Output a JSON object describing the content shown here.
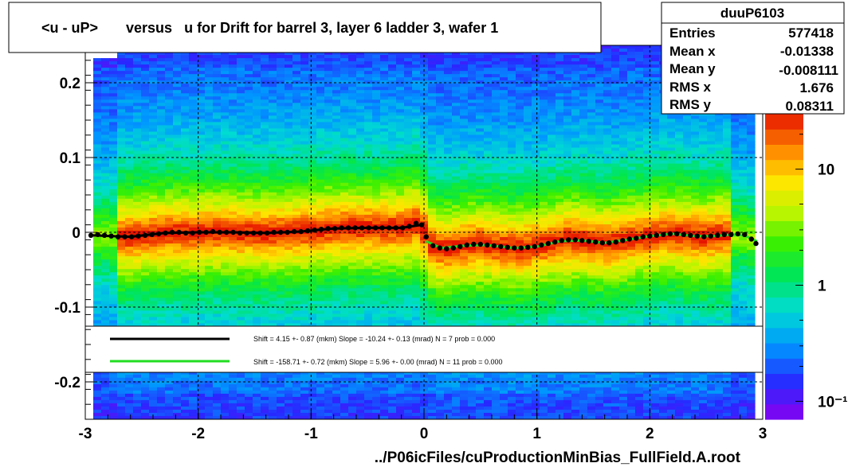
{
  "title": "<u - uP>       versus   u for Drift for barrel 3, layer 6 ladder 3, wafer 1",
  "stats": {
    "name": "duuP6103",
    "rows": [
      {
        "label": "Entries",
        "value": "577418"
      },
      {
        "label": "Mean x",
        "value": "-0.01338"
      },
      {
        "label": "Mean y",
        "value": "-0.008111"
      },
      {
        "label": "RMS x",
        "value": "1.676"
      },
      {
        "label": "RMS y",
        "value": "0.08311"
      }
    ]
  },
  "fit_legend": [
    {
      "text": "Shift =    4.15 +- 0.87 (mkm) Slope =   -10.24 +- 0.13 (mrad)  N = 7 prob = 0.000",
      "color": "#000000"
    },
    {
      "text": "Shift =  -158.71 +- 0.72 (mkm) Slope =    5.96 +- 0.00 (mrad)  N = 11 prob = 0.000",
      "color": "#22dd22"
    }
  ],
  "footer": "../P06icFiles/cuProductionMinBias_FullField.A.root",
  "colorbar": {
    "ticks": [
      {
        "value": 10,
        "label": "10"
      },
      {
        "value": 1,
        "label": "1"
      },
      {
        "value": 0.1,
        "label": "10⁻¹"
      }
    ]
  },
  "chart_data": {
    "type": "heatmap",
    "xlim": [
      -3,
      3
    ],
    "ylim": [
      -0.25,
      0.25
    ],
    "x_ticks": [
      -3,
      -2,
      -1,
      0,
      1,
      2,
      3
    ],
    "y_ticks": [
      0.2,
      0.1,
      0,
      -0.1,
      -0.2
    ],
    "x_tick_labels": [
      "-3",
      "-2",
      "-1",
      "0",
      "1",
      "2",
      "3"
    ],
    "y_tick_labels": [
      "0.2",
      "0.1",
      "0",
      "-0.1",
      "-0.2"
    ],
    "grid": true,
    "colorbar_scale": "log",
    "profile_points": [
      [
        -2.95,
        -0.004
      ],
      [
        -2.89,
        -0.003
      ],
      [
        -2.83,
        -0.004
      ],
      [
        -2.77,
        -0.005
      ],
      [
        -2.71,
        -0.006
      ],
      [
        -2.65,
        -0.006
      ],
      [
        -2.59,
        -0.006
      ],
      [
        -2.53,
        -0.005
      ],
      [
        -2.47,
        -0.004
      ],
      [
        -2.41,
        -0.003
      ],
      [
        -2.35,
        -0.002
      ],
      [
        -2.29,
        -0.001
      ],
      [
        -2.23,
        -0.0
      ],
      [
        -2.17,
        0.0
      ],
      [
        -2.11,
        -0.001
      ],
      [
        -2.05,
        -0.001
      ],
      [
        -1.99,
        -0.0
      ],
      [
        -1.93,
        0.0
      ],
      [
        -1.87,
        0.001
      ],
      [
        -1.81,
        0.0
      ],
      [
        -1.75,
        0.0
      ],
      [
        -1.69,
        -0.0
      ],
      [
        -1.63,
        -0.001
      ],
      [
        -1.57,
        -0.001
      ],
      [
        -1.51,
        -0.001
      ],
      [
        -1.45,
        -0.001
      ],
      [
        -1.39,
        -0.001
      ],
      [
        -1.33,
        -0.0
      ],
      [
        -1.27,
        0.0
      ],
      [
        -1.21,
        0.0
      ],
      [
        -1.15,
        0.001
      ],
      [
        -1.09,
        0.001
      ],
      [
        -1.03,
        0.002
      ],
      [
        -0.97,
        0.003
      ],
      [
        -0.91,
        0.004
      ],
      [
        -0.85,
        0.005
      ],
      [
        -0.79,
        0.005
      ],
      [
        -0.73,
        0.006
      ],
      [
        -0.67,
        0.006
      ],
      [
        -0.61,
        0.006
      ],
      [
        -0.55,
        0.006
      ],
      [
        -0.49,
        0.006
      ],
      [
        -0.43,
        0.006
      ],
      [
        -0.37,
        0.006
      ],
      [
        -0.31,
        0.006
      ],
      [
        -0.25,
        0.006
      ],
      [
        -0.19,
        0.006
      ],
      [
        -0.13,
        0.008
      ],
      [
        -0.07,
        0.012
      ],
      [
        -0.02,
        0.01
      ],
      [
        0.02,
        -0.006
      ],
      [
        0.08,
        -0.018
      ],
      [
        0.14,
        -0.021
      ],
      [
        0.2,
        -0.022
      ],
      [
        0.26,
        -0.021
      ],
      [
        0.32,
        -0.019
      ],
      [
        0.38,
        -0.017
      ],
      [
        0.44,
        -0.016
      ],
      [
        0.5,
        -0.016
      ],
      [
        0.56,
        -0.017
      ],
      [
        0.62,
        -0.018
      ],
      [
        0.68,
        -0.019
      ],
      [
        0.74,
        -0.02
      ],
      [
        0.8,
        -0.021
      ],
      [
        0.86,
        -0.021
      ],
      [
        0.92,
        -0.02
      ],
      [
        0.98,
        -0.019
      ],
      [
        1.04,
        -0.017
      ],
      [
        1.1,
        -0.015
      ],
      [
        1.16,
        -0.013
      ],
      [
        1.22,
        -0.011
      ],
      [
        1.28,
        -0.01
      ],
      [
        1.34,
        -0.01
      ],
      [
        1.4,
        -0.011
      ],
      [
        1.46,
        -0.012
      ],
      [
        1.52,
        -0.013
      ],
      [
        1.58,
        -0.014
      ],
      [
        1.64,
        -0.014
      ],
      [
        1.7,
        -0.013
      ],
      [
        1.76,
        -0.011
      ],
      [
        1.82,
        -0.009
      ],
      [
        1.88,
        -0.008
      ],
      [
        1.94,
        -0.006
      ],
      [
        2.0,
        -0.005
      ],
      [
        2.06,
        -0.004
      ],
      [
        2.12,
        -0.003
      ],
      [
        2.18,
        -0.002
      ],
      [
        2.24,
        -0.002
      ],
      [
        2.3,
        -0.003
      ],
      [
        2.36,
        -0.004
      ],
      [
        2.42,
        -0.005
      ],
      [
        2.48,
        -0.006
      ],
      [
        2.54,
        -0.005
      ],
      [
        2.6,
        -0.004
      ],
      [
        2.66,
        -0.003
      ],
      [
        2.72,
        -0.003
      ],
      [
        2.78,
        -0.002
      ],
      [
        2.84,
        -0.003
      ],
      [
        2.9,
        -0.009
      ],
      [
        2.94,
        -0.015
      ]
    ],
    "fit_left": {
      "color": "#000000",
      "points": [
        [
          -2.95,
          -0.004
        ],
        [
          -2.6,
          -0.006
        ],
        [
          -2.3,
          -0.001
        ],
        [
          -2.0,
          -0.0
        ],
        [
          -1.7,
          -0.0
        ],
        [
          -1.4,
          -0.001
        ],
        [
          -1.1,
          0.001
        ],
        [
          -0.8,
          0.005
        ],
        [
          -0.5,
          0.006
        ],
        [
          -0.2,
          0.006
        ],
        [
          -0.02,
          0.01
        ]
      ]
    },
    "fit_right": {
      "color": "#22dd22",
      "points": [
        [
          0.02,
          -0.012
        ],
        [
          0.15,
          -0.021
        ],
        [
          0.35,
          -0.018
        ],
        [
          0.55,
          -0.017
        ],
        [
          0.8,
          -0.021
        ],
        [
          1.0,
          -0.019
        ],
        [
          1.2,
          -0.012
        ],
        [
          1.4,
          -0.011
        ],
        [
          1.6,
          -0.014
        ],
        [
          1.8,
          -0.01
        ],
        [
          2.0,
          -0.005
        ],
        [
          2.2,
          -0.002
        ],
        [
          2.4,
          -0.005
        ],
        [
          2.55,
          -0.005
        ],
        [
          2.75,
          -0.003
        ],
        [
          2.85,
          -0.005
        ],
        [
          2.95,
          -0.012
        ]
      ]
    }
  }
}
